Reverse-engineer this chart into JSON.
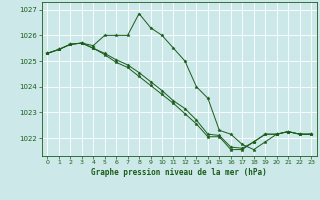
{
  "background_color": "#cce8e8",
  "grid_color": "#aacccc",
  "line_color": "#1a5c1a",
  "xlabel": "Graphe pression niveau de la mer (hPa)",
  "xlim": [
    -0.5,
    23.5
  ],
  "ylim": [
    1021.3,
    1027.3
  ],
  "yticks": [
    1022,
    1023,
    1024,
    1025,
    1026,
    1027
  ],
  "xticks": [
    0,
    1,
    2,
    3,
    4,
    5,
    6,
    7,
    8,
    9,
    10,
    11,
    12,
    13,
    14,
    15,
    16,
    17,
    18,
    19,
    20,
    21,
    22,
    23
  ],
  "series": [
    [
      1025.3,
      1025.45,
      1025.65,
      1025.7,
      1025.6,
      1026.0,
      1026.0,
      1026.0,
      1026.85,
      1026.3,
      1026.0,
      1025.5,
      1025.0,
      1024.0,
      1023.55,
      1022.3,
      1022.15,
      1021.75,
      1021.55,
      1021.85,
      1022.15,
      1022.25,
      1022.15,
      1022.15
    ],
    [
      1025.3,
      1025.45,
      1025.65,
      1025.7,
      1025.5,
      1025.3,
      1025.05,
      1024.85,
      1024.55,
      1024.2,
      1023.85,
      1023.45,
      1023.15,
      1022.7,
      1022.15,
      1022.1,
      1021.65,
      1021.6,
      1021.85,
      1022.15,
      1022.15,
      1022.25,
      1022.15,
      1022.15
    ],
    [
      1025.3,
      1025.45,
      1025.65,
      1025.7,
      1025.5,
      1025.25,
      1024.95,
      1024.75,
      1024.4,
      1024.05,
      1023.7,
      1023.35,
      1022.95,
      1022.55,
      1022.05,
      1022.05,
      1021.55,
      1021.55,
      1021.85,
      1022.15,
      1022.15,
      1022.25,
      1022.15,
      1022.15
    ]
  ]
}
